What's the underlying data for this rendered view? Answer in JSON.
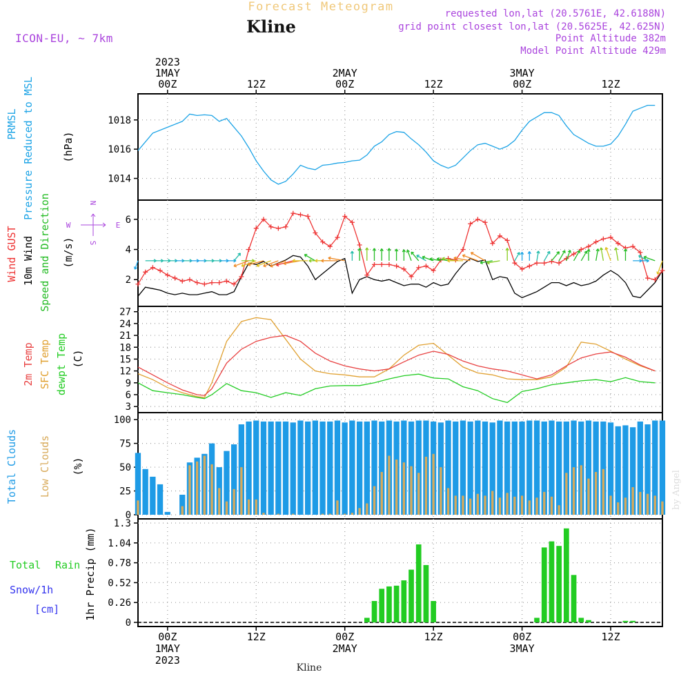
{
  "header": {
    "title": "Forecast Meteogram",
    "location": "Kline",
    "model": "ICON-EU, ~ 7km",
    "requested": "requested lon,lat (20.5761E, 42.6188N)",
    "grid_point": "grid point closest lon,lat (20.5625E, 42.625N)",
    "point_altitude": "Point Altitude 382m",
    "model_altitude": "Model Point Altitude 429m"
  },
  "footer": {
    "location": "Kline",
    "watermark": "by Angel"
  },
  "time_axis": {
    "start_hour": -4,
    "end_hour": 67,
    "top_ticks": [
      {
        "hour": 0,
        "lines": [
          "2023",
          "1MAY",
          "00Z"
        ]
      },
      {
        "hour": 12,
        "lines": [
          "12Z"
        ]
      },
      {
        "hour": 24,
        "lines": [
          "2MAY",
          "00Z"
        ]
      },
      {
        "hour": 36,
        "lines": [
          "12Z"
        ]
      },
      {
        "hour": 48,
        "lines": [
          "3MAY",
          "00Z"
        ]
      },
      {
        "hour": 60,
        "lines": [
          "12Z"
        ]
      }
    ],
    "bottom_ticks": [
      {
        "hour": 0,
        "lines": [
          "00Z",
          "1MAY",
          "2023"
        ]
      },
      {
        "hour": 12,
        "lines": [
          "12Z"
        ]
      },
      {
        "hour": 24,
        "lines": [
          "00Z",
          "2MAY"
        ]
      },
      {
        "hour": 36,
        "lines": [
          "12Z"
        ]
      },
      {
        "hour": 48,
        "lines": [
          "00Z",
          "3MAY"
        ]
      },
      {
        "hour": 60,
        "lines": [
          "12Z"
        ]
      }
    ]
  },
  "colors": {
    "pressure": "#1ba3e6",
    "gust": "#ee3333",
    "wind": "#000000",
    "direction": "#22bb22",
    "temp2m": "#e84040",
    "sfc": "#e0a030",
    "dewpt": "#22cc22",
    "total_clouds": "#1e9be6",
    "low_clouds": "#d8aa5a",
    "rain": "#22cc22",
    "snow": "#3333ee",
    "title": "#f0c87a",
    "info": "#aa44dd"
  },
  "chart_data": [
    {
      "type": "line",
      "name": "pressure",
      "title": "PRMSL Pressure Reduced to MSL",
      "label_lines": [
        "PRMSL",
        "Pressure Reduced to MSL"
      ],
      "ylabel": "(hPa)",
      "ylim": [
        1012.8,
        1019.5
      ],
      "yticks": [
        {
          "v": 1014,
          "t": "1014"
        },
        {
          "v": 1016,
          "t": "1016"
        },
        {
          "v": 1018,
          "t": "1018"
        }
      ],
      "x": [
        -4,
        -2,
        0,
        2,
        3,
        4,
        5,
        6,
        7,
        8,
        9,
        10,
        11,
        12,
        13,
        14,
        15,
        16,
        17,
        18,
        19,
        20,
        21,
        22,
        23,
        24,
        25,
        26,
        27,
        28,
        29,
        30,
        31,
        32,
        33,
        34,
        35,
        36,
        37,
        38,
        39,
        40,
        41,
        42,
        43,
        44,
        45,
        46,
        47,
        48,
        49,
        50,
        51,
        52,
        53,
        54,
        55,
        56,
        57,
        58,
        59,
        60,
        61,
        62,
        63,
        64,
        65,
        66
      ],
      "values": [
        1015.9,
        1017.1,
        1017.5,
        1017.9,
        1018.4,
        1018.3,
        1018.35,
        1018.3,
        1017.9,
        1018.1,
        1017.5,
        1016.9,
        1016.1,
        1015.2,
        1014.5,
        1013.9,
        1013.6,
        1013.8,
        1014.3,
        1014.9,
        1014.7,
        1014.6,
        1014.9,
        1014.95,
        1015.05,
        1015.1,
        1015.2,
        1015.25,
        1015.6,
        1016.2,
        1016.5,
        1017.0,
        1017.2,
        1017.15,
        1016.7,
        1016.3,
        1015.8,
        1015.2,
        1014.9,
        1014.7,
        1014.9,
        1015.4,
        1015.9,
        1016.3,
        1016.4,
        1016.2,
        1016.0,
        1016.2,
        1016.6,
        1017.3,
        1017.9,
        1018.2,
        1018.5,
        1018.5,
        1018.3,
        1017.6,
        1017.0,
        1016.7,
        1016.4,
        1016.2,
        1016.2,
        1016.35,
        1016.9,
        1017.7,
        1018.6,
        1018.8,
        1019.0,
        1019.0
      ]
    },
    {
      "type": "line",
      "name": "wind",
      "title": "Wind GUST / 10m Wind Speed and Direction",
      "label_lines": [
        "Wind GUST",
        "10m Wind",
        "Speed and Direction"
      ],
      "ylabel": "(m/s)",
      "compass": [
        "W",
        "E",
        "N",
        "S"
      ],
      "ylim": [
        0.5,
        7.0
      ],
      "yticks": [
        {
          "v": 2,
          "t": "2"
        },
        {
          "v": 4,
          "t": "4"
        },
        {
          "v": 6,
          "t": "6"
        }
      ],
      "x": [
        -4,
        -3,
        -2,
        -1,
        0,
        1,
        2,
        3,
        4,
        5,
        6,
        7,
        8,
        9,
        10,
        11,
        12,
        13,
        14,
        15,
        16,
        17,
        18,
        19,
        20,
        21,
        22,
        23,
        24,
        25,
        26,
        27,
        28,
        29,
        30,
        31,
        32,
        33,
        34,
        35,
        36,
        37,
        38,
        39,
        40,
        41,
        42,
        43,
        44,
        45,
        46,
        47,
        48,
        49,
        50,
        51,
        52,
        53,
        54,
        55,
        56,
        57,
        58,
        59,
        60,
        61,
        62,
        63,
        64,
        65,
        66,
        67
      ],
      "gust": [
        1.7,
        2.5,
        2.8,
        2.6,
        2.3,
        2.1,
        1.9,
        2.0,
        1.8,
        1.7,
        1.8,
        1.8,
        1.9,
        1.7,
        2.2,
        4.0,
        5.4,
        6.0,
        5.5,
        5.4,
        5.5,
        6.4,
        6.3,
        6.2,
        5.1,
        4.5,
        4.2,
        4.8,
        6.2,
        5.8,
        4.3,
        2.3,
        3.0,
        3.0,
        3.0,
        2.9,
        2.7,
        2.2,
        2.8,
        2.9,
        2.6,
        3.3,
        3.4,
        3.3,
        4.0,
        5.7,
        6.0,
        5.8,
        4.4,
        4.9,
        4.6,
        3.1,
        2.7,
        2.9,
        3.1,
        3.1,
        3.2,
        3.1,
        3.4,
        3.7,
        4.0,
        4.2,
        4.5,
        4.7,
        4.8,
        4.4,
        4.1,
        4.2,
        3.8,
        2.1,
        2.0,
        2.6
      ],
      "speed": [
        0.9,
        1.5,
        1.4,
        1.3,
        1.1,
        1.0,
        1.1,
        1.0,
        1.0,
        1.1,
        1.2,
        1.0,
        1.0,
        1.2,
        2.2,
        3.1,
        3.0,
        3.2,
        2.9,
        3.1,
        3.3,
        3.6,
        3.5,
        2.9,
        2.0,
        2.4,
        2.8,
        3.2,
        3.4,
        1.1,
        2.0,
        2.2,
        2.0,
        1.9,
        2.0,
        1.8,
        1.6,
        1.7,
        1.7,
        1.5,
        1.8,
        1.6,
        1.7,
        2.4,
        3.0,
        3.4,
        3.2,
        3.3,
        2.0,
        2.2,
        2.1,
        1.1,
        0.8,
        1.0,
        1.2,
        1.5,
        1.8,
        1.8,
        1.6,
        1.8,
        1.6,
        1.7,
        1.9,
        2.3,
        2.6,
        2.3,
        1.8,
        0.9,
        0.8,
        1.3,
        1.8,
        2.6
      ],
      "arrow_hours": [
        -4,
        -3,
        -2,
        -1,
        0,
        1,
        2,
        3,
        4,
        5,
        6,
        7,
        8,
        9,
        10,
        11,
        12,
        13,
        14,
        15,
        16,
        17,
        18,
        19,
        20,
        21,
        22,
        23,
        24,
        25,
        26,
        27,
        28,
        29,
        30,
        31,
        32,
        33,
        34,
        35,
        36,
        37,
        38,
        39,
        40,
        41,
        42,
        43,
        44,
        45,
        46,
        47,
        48,
        49,
        50,
        51,
        52,
        53,
        54,
        55,
        56,
        57,
        58,
        59,
        60,
        61,
        62,
        63,
        64,
        65,
        66,
        67
      ],
      "arrow_dirs": [
        200,
        90,
        90,
        90,
        90,
        90,
        90,
        90,
        90,
        90,
        90,
        90,
        90,
        40,
        90,
        250,
        250,
        255,
        250,
        250,
        250,
        255,
        260,
        270,
        300,
        270,
        270,
        270,
        280,
        0,
        0,
        0,
        0,
        0,
        0,
        0,
        0,
        340,
        320,
        300,
        290,
        280,
        280,
        280,
        270,
        280,
        290,
        300,
        260,
        260,
        0,
        30,
        0,
        0,
        10,
        30,
        40,
        30,
        20,
        30,
        30,
        0,
        10,
        350,
        340,
        350,
        0,
        90,
        90,
        300,
        290,
        200
      ]
    },
    {
      "type": "line",
      "name": "temperature",
      "title": "2m Temp / SFC Temp / dewpt Temp",
      "label_lines": [
        "2m Temp",
        "SFC Temp",
        "dewpt Temp"
      ],
      "ylabel": "(C)",
      "ylim": [
        2.5,
        27.3
      ],
      "yticks": [
        {
          "v": 3,
          "t": "3"
        },
        {
          "v": 6,
          "t": "6"
        },
        {
          "v": 9,
          "t": "9"
        },
        {
          "v": 12,
          "t": "12"
        },
        {
          "v": 15,
          "t": "15"
        },
        {
          "v": 18,
          "t": "18"
        },
        {
          "v": 21,
          "t": "21"
        },
        {
          "v": 24,
          "t": "24"
        },
        {
          "v": 27,
          "t": "27"
        }
      ],
      "x": [
        -4,
        -2,
        0,
        2,
        4,
        5,
        6,
        8,
        10,
        12,
        14,
        16,
        18,
        20,
        22,
        24,
        26,
        28,
        30,
        32,
        34,
        36,
        38,
        40,
        42,
        44,
        46,
        48,
        50,
        52,
        54,
        56,
        58,
        60,
        62,
        64,
        66
      ],
      "t2m": [
        13.0,
        11.0,
        9.0,
        7.2,
        6.0,
        5.8,
        7.5,
        14.0,
        17.5,
        19.5,
        20.5,
        21.0,
        19.5,
        16.5,
        14.5,
        13.3,
        12.5,
        12.0,
        12.5,
        14.3,
        16.0,
        17.0,
        16.2,
        14.5,
        13.3,
        12.5,
        12.0,
        11.0,
        10.0,
        11.0,
        13.3,
        15.3,
        16.3,
        16.8,
        15.5,
        13.5,
        12.0
      ],
      "sfc": [
        11.3,
        9.8,
        7.8,
        6.5,
        5.5,
        5.3,
        9.0,
        19.5,
        24.5,
        25.5,
        25.0,
        20.0,
        15.0,
        12.0,
        11.3,
        11.0,
        10.5,
        10.5,
        12.5,
        16.0,
        18.5,
        19.0,
        16.0,
        13.0,
        11.5,
        11.0,
        10.0,
        9.8,
        9.8,
        10.5,
        13.0,
        19.3,
        18.8,
        17.0,
        15.0,
        13.3,
        12.0
      ],
      "dewpt": [
        9.0,
        7.0,
        6.5,
        6.0,
        5.3,
        5.0,
        6.0,
        8.8,
        7.0,
        6.5,
        5.3,
        6.5,
        5.8,
        7.5,
        8.2,
        8.3,
        8.3,
        9.0,
        10.0,
        10.8,
        11.2,
        10.2,
        10.0,
        8.0,
        7.0,
        5.0,
        4.0,
        6.8,
        7.5,
        8.5,
        9.0,
        9.5,
        9.8,
        9.3,
        10.3,
        9.3,
        9.0
      ]
    },
    {
      "type": "bar",
      "name": "clouds",
      "title": "Total Clouds / Low Clouds",
      "label_lines": [
        "Total Clouds",
        "Low Clouds"
      ],
      "ylabel": "(%)",
      "ylim": [
        0,
        103
      ],
      "yticks": [
        {
          "v": 0,
          "t": "0"
        },
        {
          "v": 25,
          "t": "25"
        },
        {
          "v": 50,
          "t": "50"
        },
        {
          "v": 75,
          "t": "75"
        },
        {
          "v": 100,
          "t": "100"
        }
      ],
      "x": [
        -4,
        -3,
        -2,
        -1,
        0,
        1,
        2,
        3,
        4,
        5,
        6,
        7,
        8,
        9,
        10,
        11,
        12,
        13,
        14,
        15,
        16,
        17,
        18,
        19,
        20,
        21,
        22,
        23,
        24,
        25,
        26,
        27,
        28,
        29,
        30,
        31,
        32,
        33,
        34,
        35,
        36,
        37,
        38,
        39,
        40,
        41,
        42,
        43,
        44,
        45,
        46,
        47,
        48,
        49,
        50,
        51,
        52,
        53,
        54,
        55,
        56,
        57,
        58,
        59,
        60,
        61,
        62,
        63,
        64,
        65,
        66,
        67
      ],
      "total": [
        65,
        48,
        40,
        32,
        3,
        0,
        21,
        55,
        60,
        64,
        75,
        50,
        67,
        74,
        95,
        98,
        99,
        98,
        98,
        98,
        98,
        97,
        99,
        98,
        99,
        98,
        98,
        99,
        97,
        99,
        98,
        98,
        99,
        98,
        99,
        98,
        99,
        98,
        99,
        99,
        98,
        97,
        99,
        98,
        99,
        98,
        99,
        98,
        97,
        99,
        98,
        98,
        98,
        99,
        99,
        98,
        99,
        98,
        98,
        99,
        98,
        99,
        98,
        98,
        97,
        93,
        94,
        92,
        98,
        95,
        99,
        99
      ],
      "low": [
        15,
        0,
        0,
        0,
        0,
        0,
        9,
        52,
        56,
        62,
        53,
        28,
        14,
        27,
        50,
        16,
        16,
        2,
        0,
        1,
        0,
        1,
        0,
        0,
        0,
        1,
        1,
        15,
        1,
        2,
        7,
        12,
        30,
        45,
        62,
        58,
        55,
        51,
        44,
        61,
        64,
        50,
        28,
        20,
        20,
        17,
        22,
        20,
        25,
        18,
        23,
        19,
        20,
        15,
        18,
        24,
        19,
        10,
        44,
        50,
        52,
        38,
        45,
        48,
        20,
        13,
        18,
        29,
        24,
        22,
        20,
        14
      ]
    },
    {
      "type": "bar",
      "name": "precip",
      "title": "1hr Precip (mm)",
      "label_lines": [
        "Total",
        "Rain",
        "Snow/1h",
        "[cm]"
      ],
      "ylabel": "1hr Precip (mm)",
      "ylim": [
        0,
        1.3
      ],
      "yticks": [
        {
          "v": 0,
          "t": "0"
        },
        {
          "v": 0.26,
          "t": "0.26"
        },
        {
          "v": 0.52,
          "t": "0.52"
        },
        {
          "v": 0.78,
          "t": "0.78"
        },
        {
          "v": 1.04,
          "t": "1.04"
        },
        {
          "v": 1.3,
          "t": "1.3"
        }
      ],
      "x": [
        27,
        28,
        29,
        30,
        31,
        32,
        33,
        34,
        35,
        36,
        50,
        51,
        52,
        53,
        54,
        55,
        56,
        57,
        58,
        62,
        63
      ],
      "values": [
        0.06,
        0.28,
        0.44,
        0.47,
        0.48,
        0.55,
        0.69,
        1.02,
        0.75,
        0.28,
        0.06,
        0.98,
        1.06,
        1.0,
        1.23,
        0.62,
        0.06,
        0.03,
        0.0,
        0.02,
        0.02
      ]
    }
  ]
}
